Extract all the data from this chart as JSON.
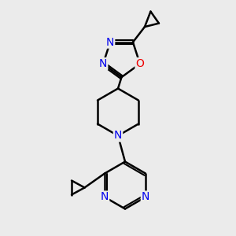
{
  "bg_color": "#ebebeb",
  "bond_color": "#000000",
  "bond_width": 1.8,
  "atom_colors": {
    "C": "#000000",
    "N": "#0000ee",
    "O": "#ee0000"
  },
  "fig_width": 3.0,
  "fig_height": 3.0
}
